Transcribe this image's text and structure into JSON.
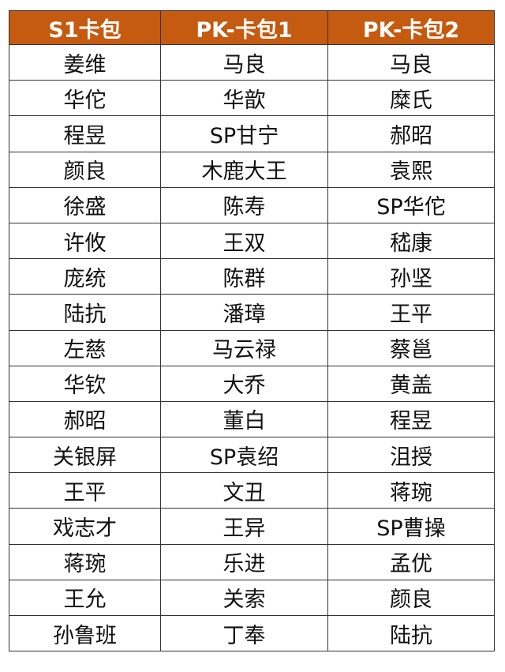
{
  "table": {
    "header_color": "#C55A11",
    "headers": [
      "S1卡包",
      "PK-卡包1",
      "PK-卡包2"
    ],
    "rows": [
      [
        "姜维",
        "马良",
        "马良"
      ],
      [
        "华佗",
        "华歆",
        "糜氏"
      ],
      [
        "程昱",
        "SP甘宁",
        "郝昭"
      ],
      [
        "颜良",
        "木鹿大王",
        "袁熙"
      ],
      [
        "徐盛",
        "陈寿",
        "SP华佗"
      ],
      [
        "许攸",
        "王双",
        "嵇康"
      ],
      [
        "庞统",
        "陈群",
        "孙坚"
      ],
      [
        "陆抗",
        "潘璋",
        "王平"
      ],
      [
        "左慈",
        "马云禄",
        "蔡邕"
      ],
      [
        "华钦",
        "大乔",
        "黄盖"
      ],
      [
        "郝昭",
        "董白",
        "程昱"
      ],
      [
        "关银屏",
        "SP袁绍",
        "沮授"
      ],
      [
        "王平",
        "文丑",
        "蒋琬"
      ],
      [
        "戏志才",
        "王异",
        "SP曹操"
      ],
      [
        "蒋琬",
        "乐进",
        "孟优"
      ],
      [
        "王允",
        "关索",
        "颜良"
      ],
      [
        "孙鲁班",
        "丁奉",
        "陆抗"
      ]
    ]
  }
}
